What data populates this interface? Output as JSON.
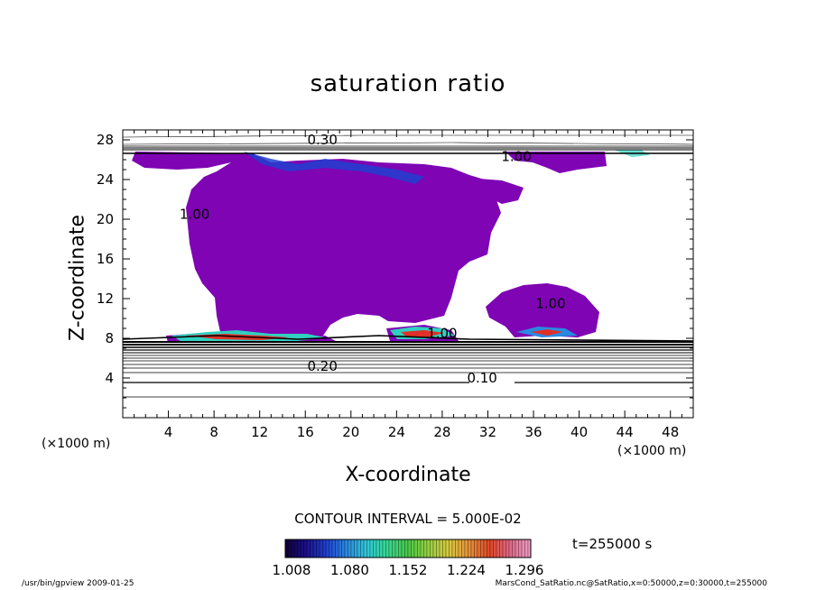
{
  "chart_data": {
    "type": "heatmap",
    "title": "saturation ratio",
    "xlabel": "X-coordinate",
    "ylabel": "Z-coordinate",
    "x_unit": "(×1000 m)",
    "y_unit": "(×1000 m)",
    "xlim": [
      0,
      50
    ],
    "ylim": [
      0,
      29
    ],
    "x_ticks": [
      4,
      8,
      12,
      16,
      20,
      24,
      28,
      32,
      36,
      40,
      44,
      48
    ],
    "y_ticks": [
      4,
      8,
      12,
      16,
      20,
      24,
      28
    ],
    "contour_interval_text": "CONTOUR INTERVAL = 5.000E-02",
    "time_text": "t=255000 s",
    "colorbar": {
      "ticks": [
        "1.008",
        "1.080",
        "1.152",
        "1.224",
        "1.296"
      ],
      "colors": [
        "#100030",
        "#1a0f8a",
        "#1f3fd0",
        "#2a8ae0",
        "#30c8d8",
        "#38d890",
        "#48c848",
        "#98d040",
        "#d8c840",
        "#e89038",
        "#e04828",
        "#e06888",
        "#f0a0c8"
      ]
    },
    "contour_labels": [
      {
        "text": "0.10",
        "x": 31.5,
        "y": 4.0
      },
      {
        "text": "0.20",
        "x": 17.5,
        "y": 5.2
      },
      {
        "text": "1.00",
        "x": 28.0,
        "y": 8.5
      },
      {
        "text": "1.00",
        "x": 37.5,
        "y": 11.5
      },
      {
        "text": "1.00",
        "x": 34.5,
        "y": 26.3
      },
      {
        "text": "1.00",
        "x": 6.3,
        "y": 20.5
      },
      {
        "text": "0.30",
        "x": 17.5,
        "y": 28.0
      }
    ],
    "regions": {
      "supersaturated_color": "#7e04b4",
      "high_color": "#e03028",
      "mid_color": "#30d0c0",
      "low_color": "#2040d0"
    }
  },
  "footer": {
    "left": "/usr/bin/gpview   2009-01-25",
    "right": "MarsCond_SatRatio.nc@SatRatio,x=0:50000,z=0:30000,t=255000"
  }
}
